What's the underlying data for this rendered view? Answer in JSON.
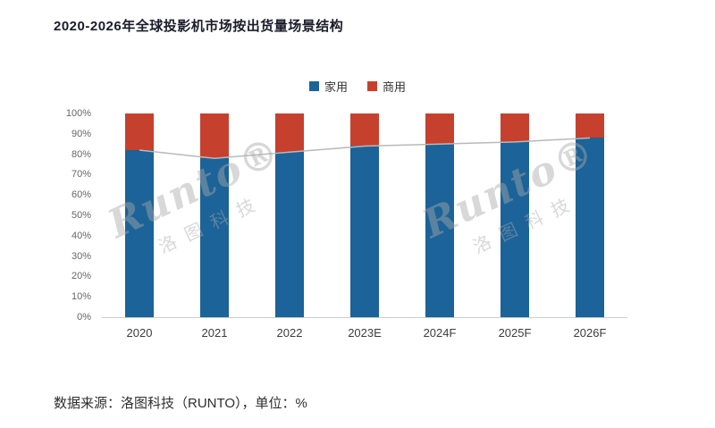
{
  "page": {
    "title": "2020-2026年全球投影机市场按出货量场景结构",
    "source_note": "数据来源：洛图科技（RUNTO），单位：%",
    "watermark_logo": "Runto®",
    "watermark_sub": "洛图科技"
  },
  "chart_data": {
    "type": "bar",
    "stacked": true,
    "percent": true,
    "title": "2020-2026年全球投影机市场按出货量场景结构",
    "categories": [
      "2020",
      "2021",
      "2022",
      "2023E",
      "2024F",
      "2025F",
      "2026F"
    ],
    "series": [
      {
        "name": "家用",
        "color": "#1b6398",
        "values": [
          82,
          78,
          81,
          84,
          85,
          86,
          88
        ]
      },
      {
        "name": "商用",
        "color": "#c6402e",
        "values": [
          18,
          22,
          19,
          16,
          15,
          14,
          12
        ]
      }
    ],
    "line_overlay": {
      "follows": "家用",
      "color": "#b9b9b9"
    },
    "ylim": [
      0,
      100
    ],
    "ytick_step": 10,
    "ytick_suffix": "%",
    "grid": false,
    "legend_position": "top"
  }
}
